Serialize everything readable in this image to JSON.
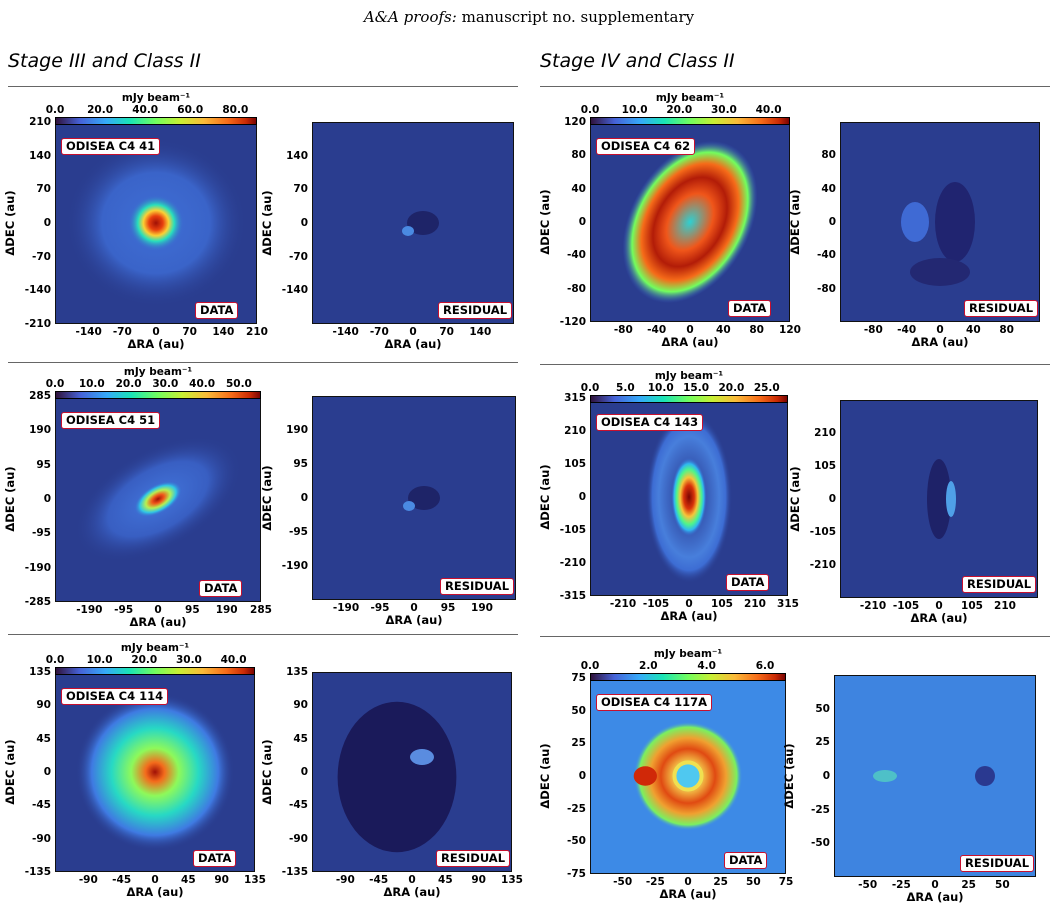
{
  "header": {
    "journal": "A&A proofs:",
    "rest": "manuscript no. supplementary"
  },
  "columns": [
    {
      "title": "Stage III and Class II"
    },
    {
      "title": "Stage IV and Class II"
    }
  ],
  "axes": {
    "xlabel": "ΔRA (au)",
    "ylabel": "ΔDEC (au)",
    "cbar_unit": "mJy beam⁻¹"
  },
  "tags": {
    "data": "DATA",
    "residual": "RESIDUAL"
  },
  "panels": [
    {
      "name": "ODISEA C4 41",
      "range": 210,
      "cbar_ticks": [
        "0.0",
        "20.0",
        "40.0",
        "60.0",
        "80.0"
      ],
      "data_y_ticks": [
        "210",
        "140",
        "70",
        "0",
        "-70",
        "-140",
        "-210"
      ],
      "data_x_ticks": [
        "-140",
        "-70",
        "0",
        "70",
        "140",
        "210"
      ],
      "res_y_ticks": [
        "140",
        "70",
        "0",
        "-70",
        "-140"
      ],
      "res_x_ticks": [
        "-140",
        "-70",
        "0",
        "70",
        "140"
      ]
    },
    {
      "name": "ODISEA C4 51",
      "range": 285,
      "cbar_ticks": [
        "0.0",
        "10.0",
        "20.0",
        "30.0",
        "40.0",
        "50.0"
      ],
      "data_y_ticks": [
        "285",
        "190",
        "95",
        "0",
        "-95",
        "-190",
        "-285"
      ],
      "data_x_ticks": [
        "-190",
        "-95",
        "0",
        "95",
        "190",
        "285"
      ],
      "res_y_ticks": [
        "190",
        "95",
        "0",
        "-95",
        "-190"
      ],
      "res_x_ticks": [
        "-190",
        "-95",
        "0",
        "95",
        "190"
      ]
    },
    {
      "name": "ODISEA C4 114",
      "range": 135,
      "cbar_ticks": [
        "0.0",
        "10.0",
        "20.0",
        "30.0",
        "40.0"
      ],
      "data_y_ticks": [
        "135",
        "90",
        "45",
        "0",
        "-45",
        "-90",
        "-135"
      ],
      "data_x_ticks": [
        "-90",
        "-45",
        "0",
        "45",
        "90",
        "135"
      ],
      "res_y_ticks": [
        "135",
        "90",
        "45",
        "0",
        "-45",
        "-90",
        "-135"
      ],
      "res_x_ticks": [
        "-90",
        "-45",
        "0",
        "45",
        "90",
        "135"
      ]
    },
    {
      "name": "ODISEA C4 62",
      "range": 120,
      "cbar_ticks": [
        "0.0",
        "10.0",
        "20.0",
        "30.0",
        "40.0"
      ],
      "data_y_ticks": [
        "120",
        "80",
        "40",
        "0",
        "-40",
        "-80",
        "-120"
      ],
      "data_x_ticks": [
        "-80",
        "-40",
        "0",
        "40",
        "80",
        "120"
      ],
      "res_y_ticks": [
        "80",
        "40",
        "0",
        "-40",
        "-80"
      ],
      "res_x_ticks": [
        "-80",
        "-40",
        "0",
        "40",
        "80"
      ]
    },
    {
      "name": "ODISEA C4 143",
      "range": 315,
      "cbar_ticks": [
        "0.0",
        "5.0",
        "10.0",
        "15.0",
        "20.0",
        "25.0"
      ],
      "data_y_ticks": [
        "315",
        "210",
        "105",
        "0",
        "-105",
        "-210",
        "-315"
      ],
      "data_x_ticks": [
        "-210",
        "-105",
        "0",
        "105",
        "210",
        "315"
      ],
      "res_y_ticks": [
        "210",
        "105",
        "0",
        "-105",
        "-210"
      ],
      "res_x_ticks": [
        "-210",
        "-105",
        "0",
        "105",
        "210"
      ]
    },
    {
      "name": "ODISEA C4 117A",
      "range": 75,
      "cbar_ticks": [
        "0.0",
        "2.0",
        "4.0",
        "6.0"
      ],
      "data_y_ticks": [
        "75",
        "50",
        "25",
        "0",
        "-25",
        "-50",
        "-75"
      ],
      "data_x_ticks": [
        "-50",
        "-25",
        "0",
        "25",
        "50",
        "75"
      ],
      "res_y_ticks": [
        "50",
        "25",
        "0",
        "-25",
        "-50"
      ],
      "res_x_ticks": [
        "-50",
        "-25",
        "0",
        "25",
        "50"
      ]
    }
  ]
}
